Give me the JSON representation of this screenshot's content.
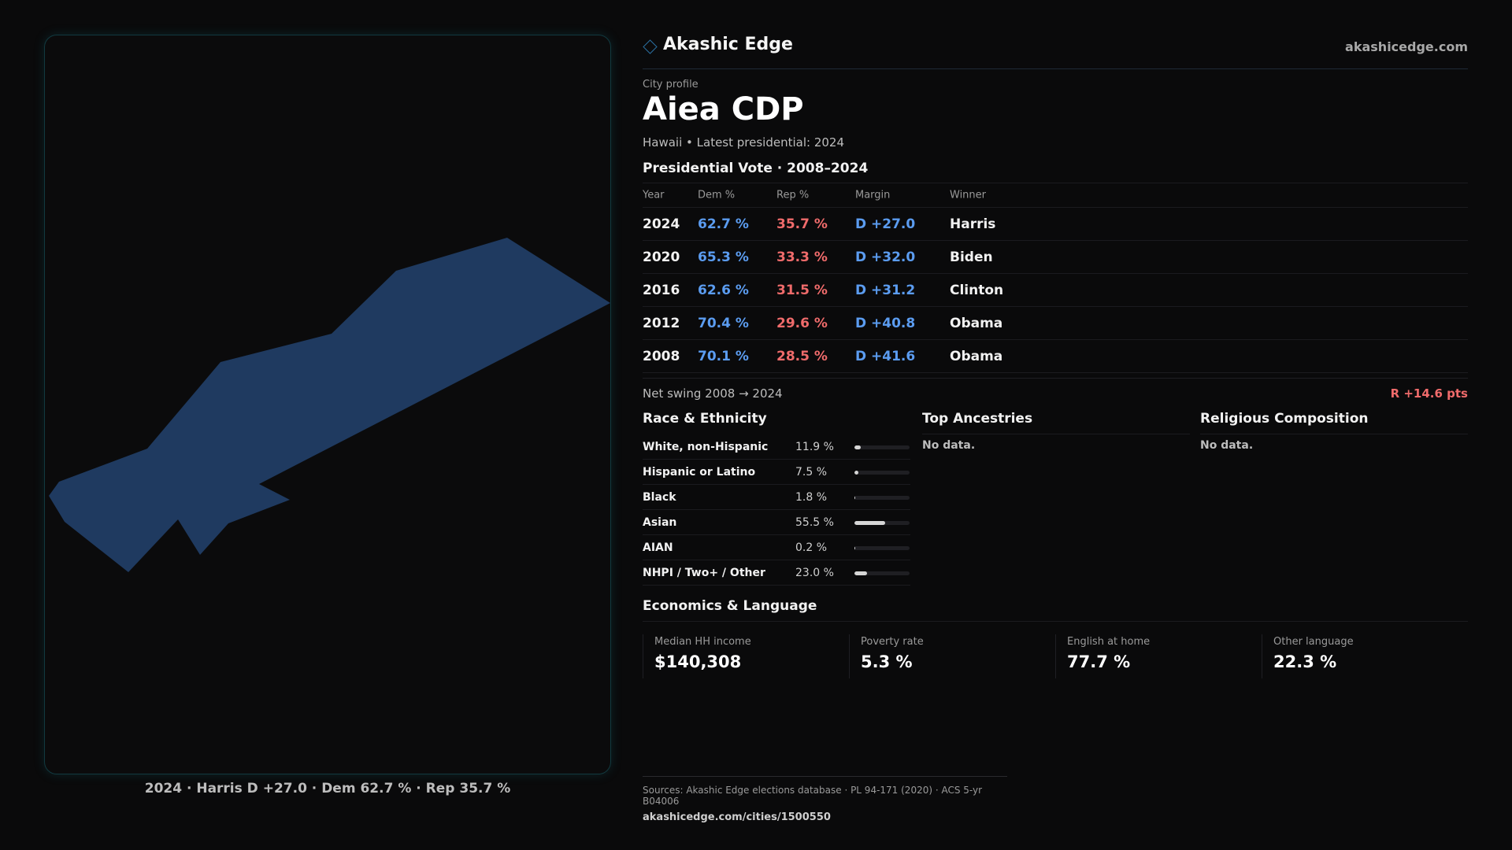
{
  "map": {
    "caption": "2024 · Harris D +27.0 · Dem 62.7 % · Rep 35.7 %",
    "fill_color": "#1f3a60"
  },
  "header": {
    "brand": "Akashic Edge",
    "site": "akashicedge.com"
  },
  "profile": {
    "kicker": "City profile",
    "name": "Aiea CDP",
    "subtitle": "Hawaii • Latest presidential: 2024"
  },
  "vote": {
    "title": "Presidential Vote · 2008–2024",
    "columns": [
      "Year",
      "Dem %",
      "Rep %",
      "Margin",
      "Winner"
    ],
    "rows": [
      {
        "year": "2024",
        "dem": "62.7 %",
        "rep": "35.7 %",
        "margin": "D +27.0",
        "winner": "Harris"
      },
      {
        "year": "2020",
        "dem": "65.3 %",
        "rep": "33.3 %",
        "margin": "D +32.0",
        "winner": "Biden"
      },
      {
        "year": "2016",
        "dem": "62.6 %",
        "rep": "31.5 %",
        "margin": "D +31.2",
        "winner": "Clinton"
      },
      {
        "year": "2012",
        "dem": "70.4 %",
        "rep": "29.6 %",
        "margin": "D +40.8",
        "winner": "Obama"
      },
      {
        "year": "2008",
        "dem": "70.1 %",
        "rep": "28.5 %",
        "margin": "D +41.6",
        "winner": "Obama"
      }
    ],
    "swing_label": "Net swing 2008 → 2024",
    "swing_value": "R +14.6 pts"
  },
  "race": {
    "title": "Race & Ethnicity",
    "rows": [
      {
        "label": "White, non-Hispanic",
        "value": "11.9 %",
        "pct": 11.9
      },
      {
        "label": "Hispanic or Latino",
        "value": "7.5 %",
        "pct": 7.5
      },
      {
        "label": "Black",
        "value": "1.8 %",
        "pct": 1.8
      },
      {
        "label": "Asian",
        "value": "55.5 %",
        "pct": 55.5
      },
      {
        "label": "AIAN",
        "value": "0.2 %",
        "pct": 0.2
      },
      {
        "label": "NHPI / Two+ / Other",
        "value": "23.0 %",
        "pct": 23.0
      }
    ]
  },
  "ancestries": {
    "title": "Top Ancestries",
    "empty": "No data."
  },
  "religion": {
    "title": "Religious Composition",
    "empty": "No data."
  },
  "economics": {
    "title": "Economics & Language",
    "cards": [
      {
        "label": "Median HH income",
        "value": "$140,308"
      },
      {
        "label": "Poverty rate",
        "value": "5.3 %"
      },
      {
        "label": "English at home",
        "value": "77.7 %"
      },
      {
        "label": "Other language",
        "value": "22.3 %"
      }
    ]
  },
  "footer": {
    "sources": "Sources: Akashic Edge elections database · PL 94-171 (2020) · ACS 5-yr B04006",
    "url": "akashicedge.com/cities/1500550"
  },
  "colors": {
    "dem": "#5b9cf0",
    "rep": "#ef6b6b",
    "accent": "#2a6fa0"
  }
}
